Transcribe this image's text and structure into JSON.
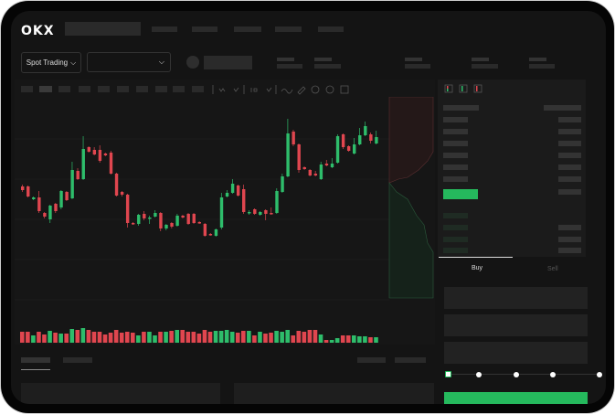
{
  "header": {
    "logo": "OKX"
  },
  "toolbar": {
    "market_selector": "Spot Trading",
    "chevron": "⌵"
  },
  "order_form": {
    "tabs": [
      {
        "label": "Buy",
        "active": true
      },
      {
        "label": "Sell",
        "active": false
      }
    ],
    "slider_percent": 0
  },
  "colors": {
    "up": "#2ebd6b",
    "down": "#e0464f",
    "accent": "#25b95d",
    "background": "#141414"
  },
  "chart_data": {
    "type": "candlestick",
    "fields": [
      "open",
      "close",
      "high",
      "low"
    ],
    "candles": [
      [
        197,
        193,
        199,
        191
      ],
      [
        197,
        186,
        198,
        185
      ],
      [
        183,
        185,
        186,
        182
      ],
      [
        185,
        170,
        192,
        168
      ],
      [
        168,
        164,
        169,
        162
      ],
      [
        161,
        176,
        177,
        157
      ],
      [
        178,
        170,
        179,
        168
      ],
      [
        174,
        192,
        193,
        172
      ],
      [
        191,
        182,
        192,
        181
      ],
      [
        184,
        215,
        224,
        183
      ],
      [
        214,
        205,
        217,
        204
      ],
      [
        205,
        238,
        252,
        204
      ],
      [
        240,
        235,
        241,
        234
      ],
      [
        237,
        232,
        240,
        231
      ],
      [
        237,
        225,
        242,
        223
      ],
      [
        233,
        231,
        234,
        230
      ],
      [
        234,
        211,
        236,
        210
      ],
      [
        211,
        187,
        212,
        186
      ],
      [
        191,
        188,
        192,
        186
      ],
      [
        188,
        157,
        189,
        152
      ],
      [
        157,
        156,
        158,
        155
      ],
      [
        156,
        166,
        167,
        154
      ],
      [
        167,
        162,
        170,
        160
      ],
      [
        162,
        163,
        165,
        156
      ],
      [
        164,
        168,
        171,
        163
      ],
      [
        168,
        151,
        169,
        148
      ],
      [
        151,
        155,
        156,
        149
      ],
      [
        157,
        153,
        158,
        151
      ],
      [
        154,
        165,
        167,
        153
      ],
      [
        165,
        163,
        166,
        162
      ],
      [
        167,
        156,
        168,
        155
      ],
      [
        167,
        157,
        168,
        156
      ],
      [
        158,
        157,
        159,
        156
      ],
      [
        156,
        143,
        157,
        142
      ],
      [
        145,
        144,
        146,
        143
      ],
      [
        143,
        150,
        151,
        142
      ],
      [
        152,
        185,
        190,
        150
      ],
      [
        186,
        190,
        193,
        185
      ],
      [
        190,
        200,
        205,
        189
      ],
      [
        198,
        187,
        199,
        186
      ],
      [
        194,
        169,
        199,
        167
      ],
      [
        168,
        169,
        171,
        166
      ],
      [
        172,
        167,
        173,
        166
      ],
      [
        166,
        169,
        170,
        165
      ],
      [
        171,
        167,
        172,
        160
      ],
      [
        168,
        167,
        174,
        166
      ],
      [
        168,
        192,
        195,
        167
      ],
      [
        191,
        208,
        211,
        190
      ],
      [
        208,
        255,
        271,
        207
      ],
      [
        257,
        243,
        259,
        241
      ],
      [
        243,
        215,
        244,
        212
      ],
      [
        218,
        216,
        219,
        215
      ],
      [
        215,
        209,
        216,
        208
      ],
      [
        211,
        209,
        214,
        208
      ],
      [
        205,
        221,
        224,
        204
      ],
      [
        222,
        220,
        226,
        219
      ],
      [
        218,
        222,
        228,
        217
      ],
      [
        223,
        252,
        254,
        222
      ],
      [
        254,
        240,
        255,
        238
      ],
      [
        241,
        236,
        242,
        235
      ],
      [
        233,
        243,
        250,
        232
      ],
      [
        243,
        253,
        261,
        242
      ],
      [
        253,
        263,
        268,
        252
      ],
      [
        254,
        247,
        256,
        244
      ],
      [
        244,
        251,
        258,
        243
      ]
    ],
    "volume": [
      12,
      12,
      8,
      12,
      9,
      13,
      11,
      10,
      10,
      15,
      14,
      16,
      14,
      12,
      12,
      9,
      11,
      14,
      11,
      12,
      11,
      8,
      12,
      12,
      8,
      12,
      12,
      13,
      14,
      14,
      12,
      12,
      10,
      14,
      12,
      13,
      13,
      14,
      12,
      11,
      13,
      13,
      8,
      12,
      10,
      11,
      13,
      12,
      14,
      8,
      13,
      12,
      14,
      14,
      9,
      3,
      3,
      5,
      8,
      8,
      8,
      7,
      7,
      6,
      6
    ]
  }
}
